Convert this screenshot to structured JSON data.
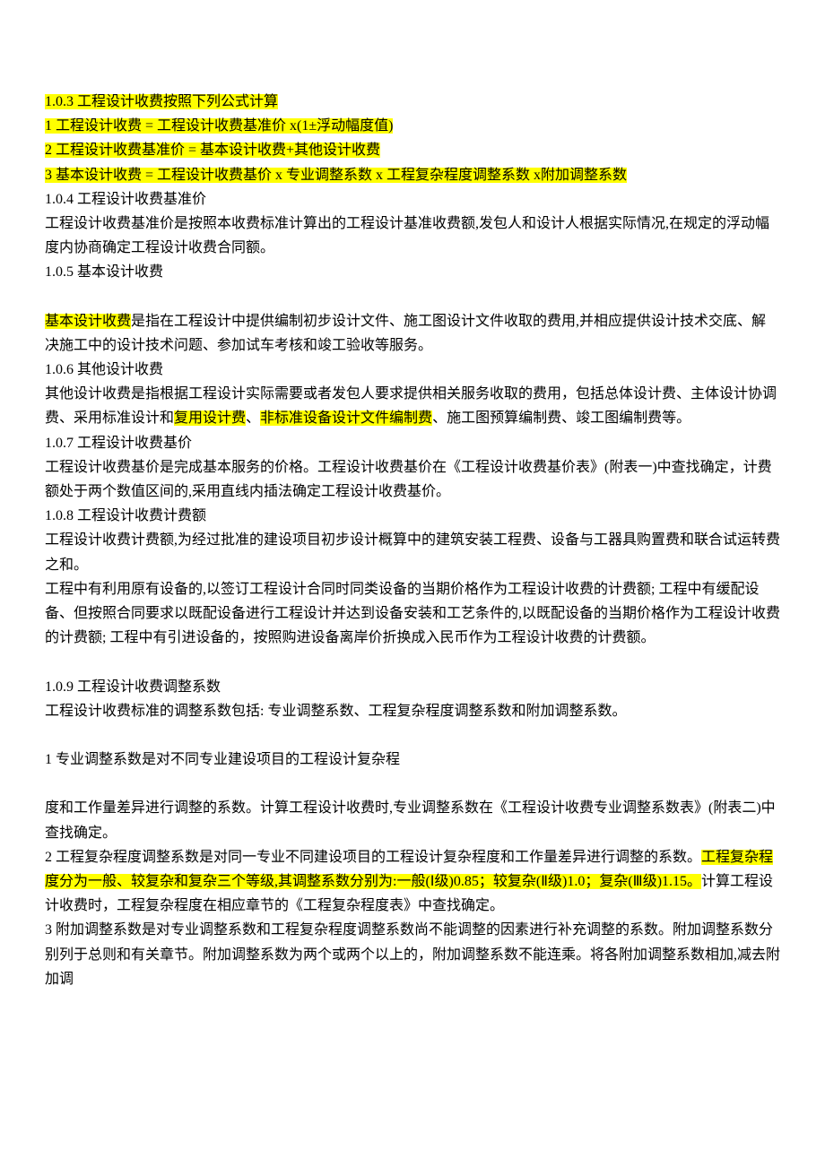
{
  "s103_heading": "1.0.3 工程设计收费按照下列公式计算",
  "s103_l1": "1 工程设计收费 = 工程设计收费基准价 x(1±浮动幅度值)",
  "s103_l2": "2 工程设计收费基准价 = 基本设计收费+其他设计收费",
  "s103_l3": "3 基本设计收费 = 工程设计收费基价 x 专业调整系数 x 工程复杂程度调整系数 x附加调整系数",
  "s104_heading": "1.0.4 工程设计收费基准价",
  "s104_body": "工程设计收费基准价是按照本收费标准计算出的工程设计基准收费额,发包人和设计人根据实际情况,在规定的浮动幅度内协商确定工程设计收费合同额。",
  "s105_heading": "1.0.5 基本设计收费",
  "s105_hl": "基本设计收费",
  "s105_tail": "是指在工程设计中提供编制初步设计文件、施工图设计文件收取的费用,并相应提供设计技术交底、解决施工中的设计技术问题、参加试车考核和竣工验收等服务。",
  "s106_heading": "1.0.6 其他设计收费",
  "s106_p1": "其他设计收费是指根据工程设计实际需要或者发包人要求提供相关服务收取的费用，包括总体设计费、主体设计协调费、采用标准设计和",
  "s106_hl1": "复用设计费",
  "s106_sep": "、",
  "s106_hl2": "非标准设备设计文件编制费",
  "s106_tail": "、施工图预算编制费、竣工图编制费等。",
  "s107_heading": "1.0.7 工程设计收费基价",
  "s107_body": "工程设计收费基价是完成基本服务的价格。工程设计收费基价在《工程设计收费基价表》(附表一)中查找确定，计费额处于两个数值区间的,采用直线内插法确定工程设计收费基价。",
  "s108_heading": "1.0.8 工程设计收费计费额",
  "s108_p1": "工程设计收费计费额,为经过批准的建设项目初步设计概算中的建筑安装工程费、设备与工器具购置费和联合试运转费之和。",
  "s108_p2": "工程中有利用原有设备的,以签订工程设计合同时同类设备的当期价格作为工程设计收费的计费额; 工程中有缓配设备、但按照合同要求以既配设备进行工程设计并达到设备安装和工艺条件的,以既配设备的当期价格作为工程设计收费的计费额; 工程中有引进设备的，按照购进设备离岸价折换成入民币作为工程设计收费的计费额。",
  "s109_heading": "1.0.9 工程设计收费调整系数",
  "s109_body": "工程设计收费标准的调整系数包括: 专业调整系数、工程复杂程度调整系数和附加调整系数。",
  "item1_heading": "1 专业调整系数是对不同专业建设项目的工程设计复杂程",
  "item1_body": "度和工作量差异进行调整的系数。计算工程设计收费时,专业调整系数在《工程设计收费专业调整系数表》(附表二)中查找确定。",
  "item2_pre": "2 工程复杂程度调整系数是对同一专业不同建设项目的工程设计复杂程度和工作量差异进行调整的系数。",
  "item2_hl": "工程复杂程度分为一般、较复杂和复杂三个等级,其调整系数分别为:一般(Ⅰ级)0.85；较复杂(Ⅱ级)1.0；复杂(Ⅲ级)1.15。",
  "item2_tail": "计算工程设计收费时，工程复杂程度在相应章节的《工程复杂程度表》中查找确定。",
  "item3": "3 附加调整系数是对专业调整系数和工程复杂程度调整系数尚不能调整的因素进行补充调整的系数。附加调整系数分别列于总则和有关章节。附加调整系数为两个或两个以上的，附加调整系数不能连乘。将各附加调整系数相加,减去附加调"
}
